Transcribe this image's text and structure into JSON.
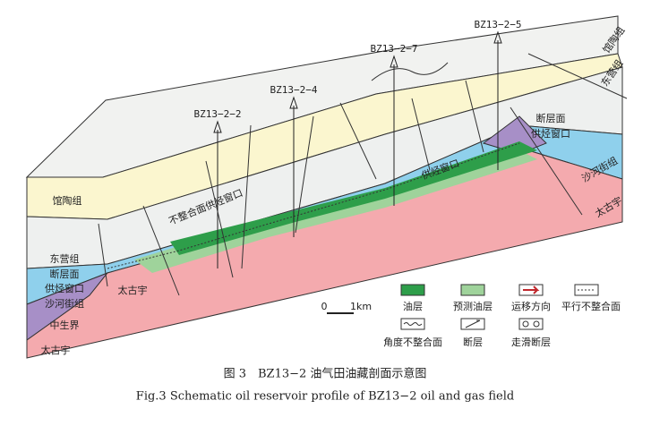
{
  "wells": [
    "BZ13−2−2",
    "BZ13−2−4",
    "BZ13−2−7",
    "BZ13−2−5"
  ],
  "formation_labels": [
    "馆陶组",
    "东营组",
    "断层面",
    "供烃窗口",
    "沙河街组",
    "中生界",
    "太古宇",
    "太古宇",
    "不整合面供烃窗口",
    "供烃窗口",
    "断层面",
    "供烃窗口",
    "沙河街组",
    "太古宇",
    "东营组",
    "馆陶组"
  ],
  "scale": {
    "zero": "0",
    "unit": "1km"
  },
  "legend": [
    "油层",
    "预测油层",
    "运移方向",
    "平行不整合面",
    "角度不整合面",
    "断层",
    "走滑断层"
  ],
  "caption": {
    "zh": "图 3　BZ13−2 油气田油藏剖面示意图",
    "en": "Fig.3 Schematic oil reservoir profile of BZ13−2 oil and gas field"
  }
}
